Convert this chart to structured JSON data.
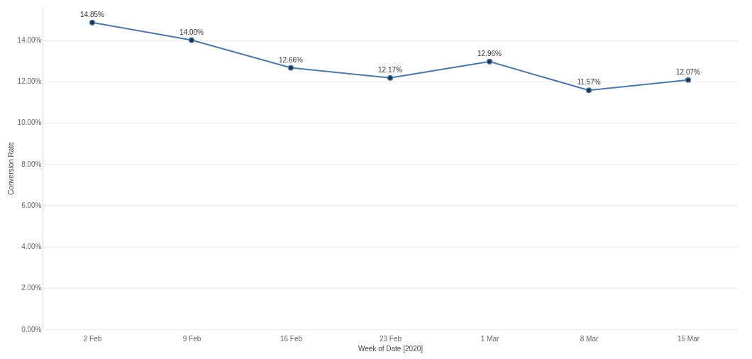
{
  "chart_data": {
    "type": "line",
    "xlabel": "Week of Date [2020]",
    "ylabel": "Conversion Rate",
    "categories": [
      "2 Feb",
      "9 Feb",
      "16 Feb",
      "23 Feb",
      "1 Mar",
      "8 Mar",
      "15 Mar"
    ],
    "series": [
      {
        "color": "#4e79a7",
        "values": [
          14.85,
          14.0,
          12.66,
          12.17,
          12.96,
          11.57,
          12.07
        ]
      }
    ],
    "value_labels": [
      "14.85%",
      "14.00%",
      "12.66%",
      "12.17%",
      "12.96%",
      "11.57%",
      "12.07%"
    ],
    "ylim": [
      0,
      15.6
    ],
    "yticks": [
      {
        "value": 0,
        "label": "0.00%"
      },
      {
        "value": 2,
        "label": "2.00%"
      },
      {
        "value": 4,
        "label": "4.00%"
      },
      {
        "value": 6,
        "label": "6.00%"
      },
      {
        "value": 8,
        "label": "8.00%"
      },
      {
        "value": 10,
        "label": "10.00%"
      },
      {
        "value": 12,
        "label": "12.00%"
      },
      {
        "value": 14,
        "label": "14.00%"
      }
    ],
    "grid": "y",
    "marker": "circle",
    "line_style": "solid"
  }
}
